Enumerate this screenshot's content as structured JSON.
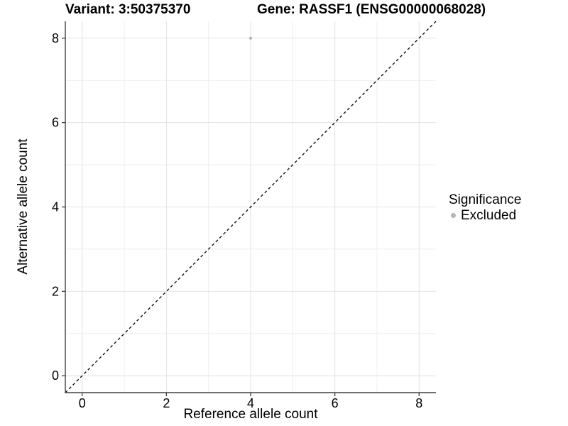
{
  "chart_data": {
    "type": "scatter",
    "titles": {
      "left": "Variant: 3:50375370",
      "right": "Gene: RASSF1 (ENSG00000068028)"
    },
    "xlabel": "Reference allele count",
    "ylabel": "Alternative allele count",
    "xlim": [
      -0.4,
      8.4
    ],
    "ylim": [
      -0.4,
      8.4
    ],
    "xticks": [
      0,
      2,
      4,
      6,
      8
    ],
    "yticks": [
      0,
      2,
      4,
      6,
      8
    ],
    "x_minor": [
      1,
      3,
      5,
      7
    ],
    "y_minor": [
      1,
      3,
      5,
      7
    ],
    "grid": true,
    "legend": {
      "title": "Significance",
      "position": "right",
      "entries": [
        {
          "label": "Excluded",
          "color": "#b5b5b5"
        }
      ]
    },
    "series": [
      {
        "name": "Excluded",
        "color": "#b5b5b5",
        "points": [
          {
            "x": 4,
            "y": 8
          }
        ]
      }
    ],
    "reference_line": {
      "type": "identity",
      "slope": 1,
      "intercept": 0,
      "linetype": "dashed",
      "color": "#000000"
    },
    "colors": {
      "background": "#ffffff",
      "major_grid": "#e2e2e2",
      "minor_grid": "#eeeeee",
      "axis_line": "#404040",
      "tick_mark": "#404040",
      "text": "#000000"
    }
  }
}
